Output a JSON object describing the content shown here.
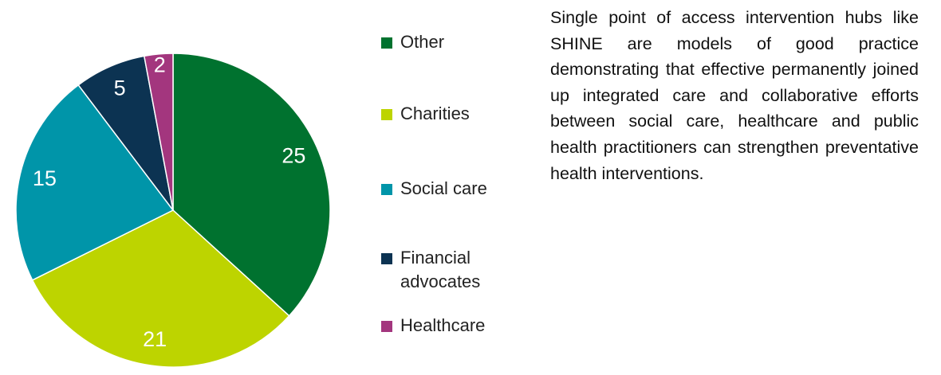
{
  "chart_data": {
    "type": "pie",
    "categories": [
      "Other",
      "Charities",
      "Social care",
      "Financial advocates",
      "Healthcare"
    ],
    "values": [
      25,
      21,
      15,
      5,
      2
    ],
    "colors": [
      "#00722f",
      "#bdd400",
      "#0095a9",
      "#0c3352",
      "#a3367e"
    ]
  },
  "text": "Single point of access intervention hubs like SHINE are models of good practice demonstrating that effective permanently joined up integrated care and collaborative efforts between social care, healthcare and public health practitioners can strengthen preventative health interventions."
}
